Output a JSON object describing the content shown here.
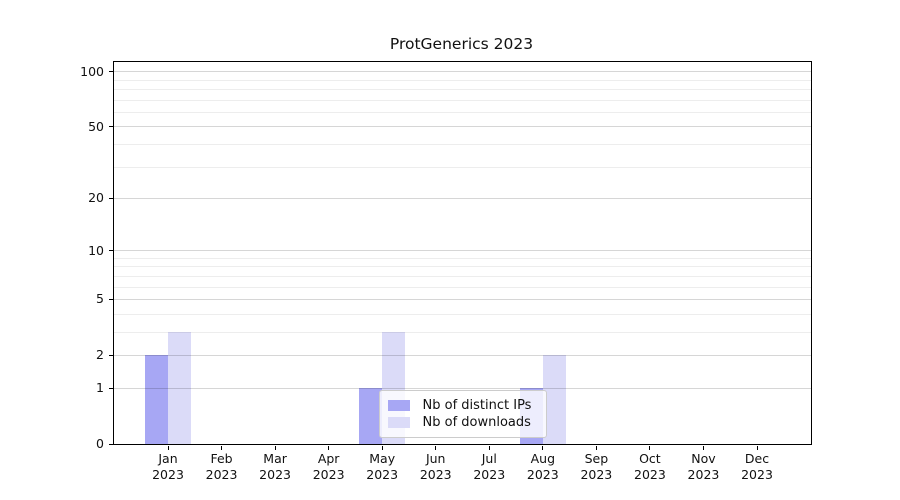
{
  "chart_data": {
    "type": "bar",
    "title": "ProtGenerics 2023",
    "categories": [
      "Jan",
      "Feb",
      "Mar",
      "Apr",
      "May",
      "Jun",
      "Jul",
      "Aug",
      "Sep",
      "Oct",
      "Nov",
      "Dec"
    ],
    "category_year": "2023",
    "series": [
      {
        "name": "Nb of distinct IPs",
        "color": "#a7a7f4",
        "values": [
          2,
          0,
          0,
          0,
          1,
          0,
          0,
          1,
          0,
          0,
          0,
          0
        ]
      },
      {
        "name": "Nb of downloads",
        "color": "#dbdbf8",
        "values": [
          3,
          0,
          0,
          0,
          3,
          0,
          0,
          2,
          0,
          0,
          0,
          0
        ]
      }
    ],
    "xlabel": "",
    "ylabel": "",
    "yscale": "log1p",
    "ylim": [
      0,
      113
    ],
    "yticks": [
      0,
      1,
      2,
      5,
      10,
      20,
      50,
      100
    ],
    "major_gridlines": [
      1,
      2,
      5,
      10,
      20,
      50,
      100
    ],
    "minor_gridlines": [
      3,
      4,
      6,
      7,
      8,
      9,
      30,
      40,
      60,
      70,
      80,
      90
    ],
    "grid": "horizontal",
    "legend_position": "lower center"
  },
  "colors": {
    "major_grid": "rgba(0,0,0,0.16)",
    "minor_grid": "rgba(0,0,0,0.07)",
    "spine": "#000000",
    "background": "#ffffff",
    "text": "#111111"
  }
}
